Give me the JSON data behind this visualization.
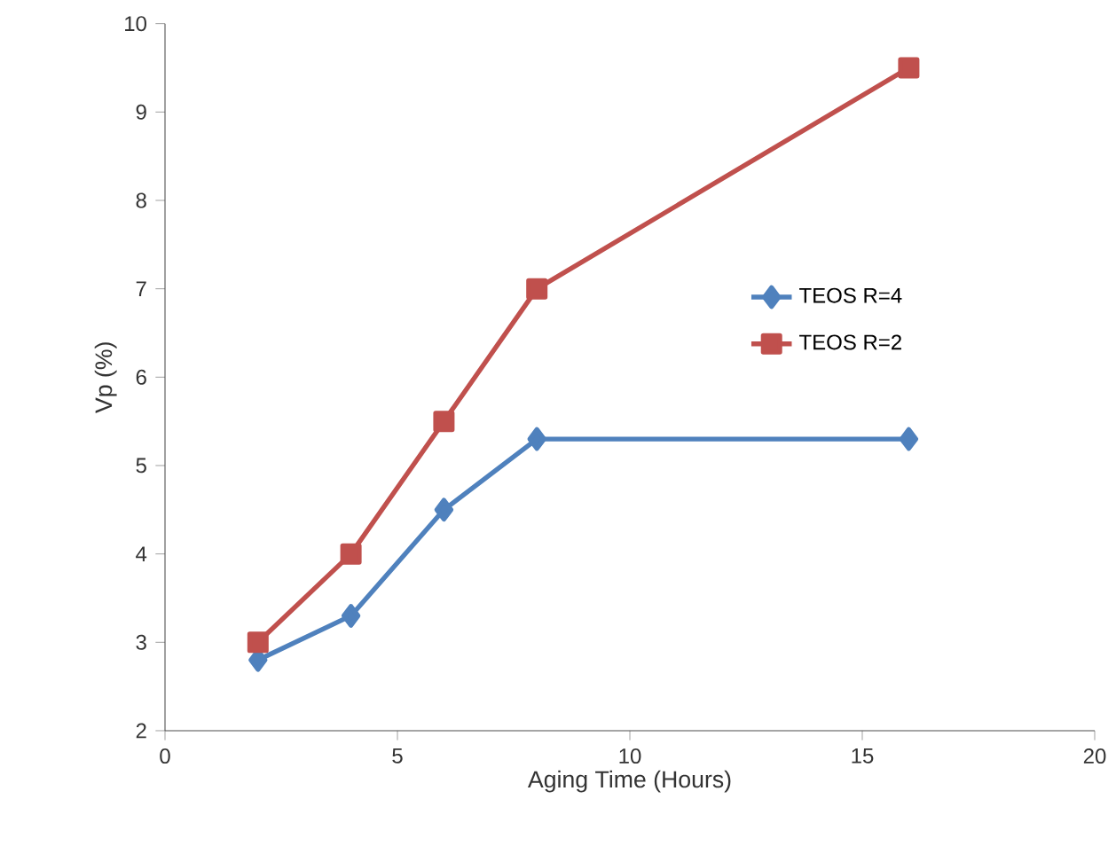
{
  "chart_data": {
    "type": "line",
    "xlabel": "Aging Time (Hours)",
    "ylabel": "Vp (%)",
    "x": [
      2,
      4,
      6,
      8,
      16
    ],
    "series": [
      {
        "name": "TEOS R=4",
        "color": "#4f81bd",
        "marker": "diamond",
        "values": [
          2.8,
          3.3,
          4.5,
          5.3,
          5.3
        ]
      },
      {
        "name": "TEOS R=2",
        "color": "#c0504d",
        "marker": "square",
        "values": [
          3,
          4,
          5.5,
          7,
          9.5
        ]
      }
    ],
    "xlim": [
      0,
      20
    ],
    "xticks": [
      0,
      5,
      10,
      15,
      20
    ],
    "ylim": [
      2,
      10
    ],
    "yticks": [
      2,
      3,
      4,
      5,
      6,
      7,
      8,
      9,
      10
    ],
    "grid": false,
    "legend": "right"
  }
}
